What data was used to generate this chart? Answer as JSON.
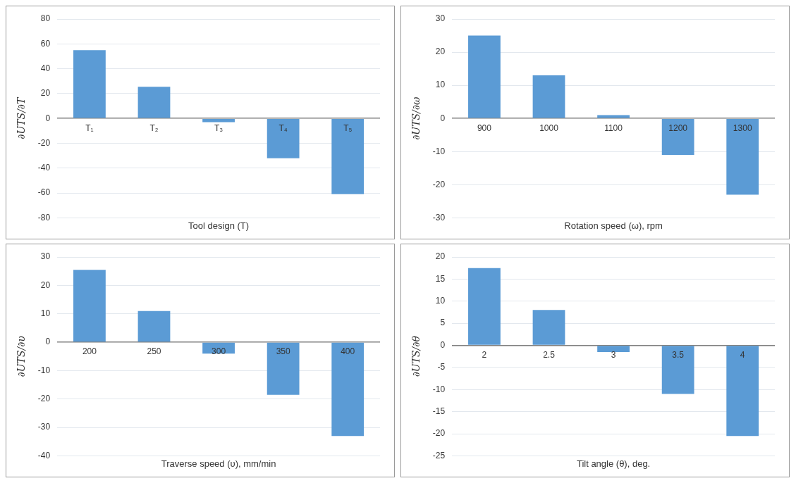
{
  "chart_data": [
    {
      "type": "bar",
      "categories": [
        "T₁",
        "T₂",
        "T₃",
        "T₄",
        "T₅"
      ],
      "values": [
        55,
        25.5,
        -3,
        -32,
        -61
      ],
      "color": "#5b9bd5",
      "ylim": [
        -80,
        80
      ],
      "yticks": [
        -80,
        -60,
        -40,
        -20,
        0,
        20,
        40,
        60,
        80
      ],
      "ylabel": "∂UTS/∂T",
      "xlabel": "Tool design (T)",
      "grid": "y"
    },
    {
      "type": "bar",
      "categories": [
        "900",
        "1000",
        "1100",
        "1200",
        "1300"
      ],
      "values": [
        25,
        13,
        1,
        -11,
        -23
      ],
      "color": "#5b9bd5",
      "ylim": [
        -30,
        30
      ],
      "yticks": [
        -30,
        -20,
        -10,
        0,
        10,
        20,
        30
      ],
      "ylabel": "∂UTS/∂ω",
      "xlabel": "Rotation speed (ω), rpm",
      "grid": "y"
    },
    {
      "type": "bar",
      "categories": [
        "200",
        "250",
        "300",
        "350",
        "400"
      ],
      "values": [
        25.5,
        11,
        -4,
        -18.5,
        -33
      ],
      "color": "#5b9bd5",
      "ylim": [
        -40,
        30
      ],
      "yticks": [
        -40,
        -30,
        -20,
        -10,
        0,
        10,
        20,
        30
      ],
      "ylabel": "∂UTS/∂υ",
      "xlabel": "Traverse speed (υ), mm/min",
      "grid": "y"
    },
    {
      "type": "bar",
      "categories": [
        "2",
        "2.5",
        "3",
        "3.5",
        "4"
      ],
      "values": [
        17.5,
        8,
        -1.5,
        -11,
        -20.5
      ],
      "color": "#5b9bd5",
      "ylim": [
        -25,
        20
      ],
      "yticks": [
        -25,
        -20,
        -15,
        -10,
        -5,
        0,
        5,
        10,
        15,
        20
      ],
      "ylabel": "∂UTS/∂θ",
      "xlabel": "Tilt angle (θ), deg.",
      "grid": "y"
    }
  ]
}
